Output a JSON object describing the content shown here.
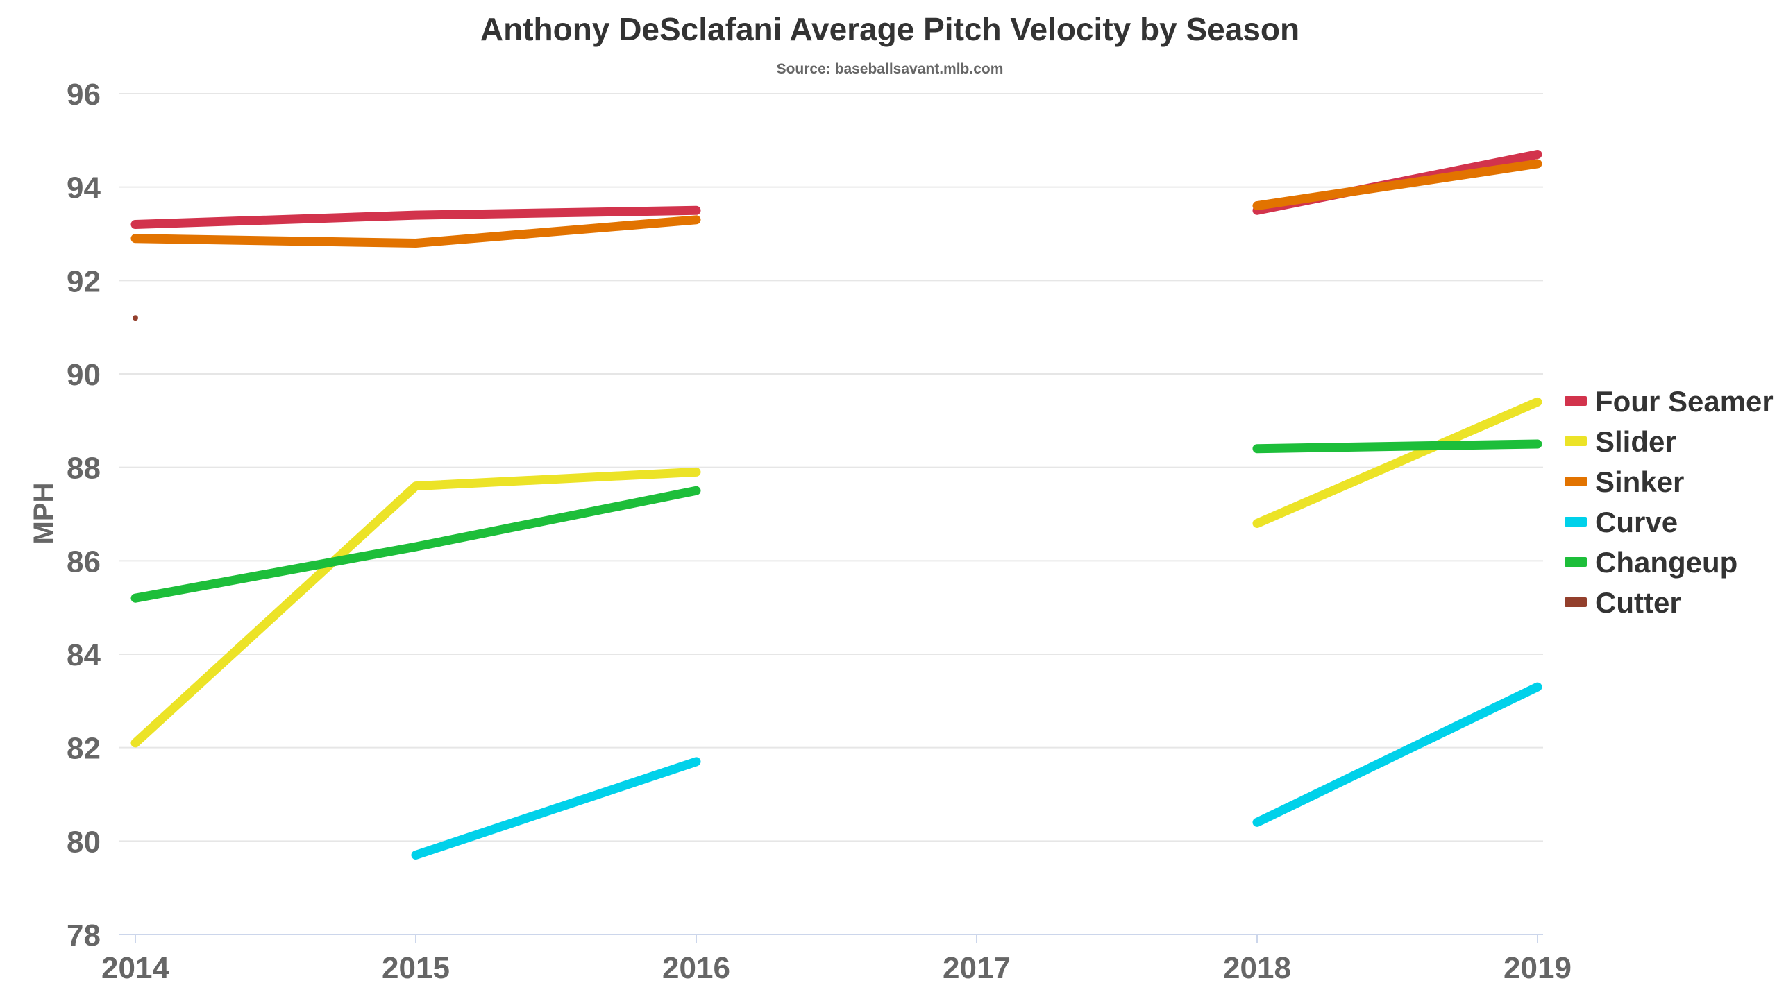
{
  "chart_data": {
    "type": "line",
    "title": "Anthony DeSclafani Average Pitch Velocity by Season",
    "subtitle": "Source: baseballsavant.mlb.com",
    "xlabel": "",
    "ylabel": "MPH",
    "x": [
      2014,
      2015,
      2016,
      2017,
      2018,
      2019
    ],
    "xticks": [
      "2014",
      "2015",
      "2016",
      "2017",
      "2018",
      "2019"
    ],
    "ylim": [
      78,
      96
    ],
    "yticks": [
      78,
      80,
      82,
      84,
      86,
      88,
      90,
      92,
      94,
      96
    ],
    "grid": true,
    "legend_position": "right",
    "series": [
      {
        "name": "Four Seamer",
        "color": "#d2334c",
        "values": [
          93.2,
          93.4,
          93.5,
          null,
          93.5,
          94.7
        ]
      },
      {
        "name": "Slider",
        "color": "#ece327",
        "values": [
          82.1,
          87.6,
          87.9,
          null,
          86.8,
          89.4
        ]
      },
      {
        "name": "Sinker",
        "color": "#e27300",
        "values": [
          92.9,
          92.8,
          93.3,
          null,
          93.6,
          94.5
        ]
      },
      {
        "name": "Curve",
        "color": "#00d1ea",
        "values": [
          null,
          79.7,
          81.7,
          null,
          80.4,
          83.3
        ]
      },
      {
        "name": "Changeup",
        "color": "#1dbe3a",
        "values": [
          85.2,
          86.3,
          87.5,
          null,
          88.4,
          88.5
        ]
      },
      {
        "name": "Cutter",
        "color": "#933f2c",
        "values": [
          91.2,
          null,
          null,
          null,
          null,
          null
        ]
      }
    ]
  }
}
